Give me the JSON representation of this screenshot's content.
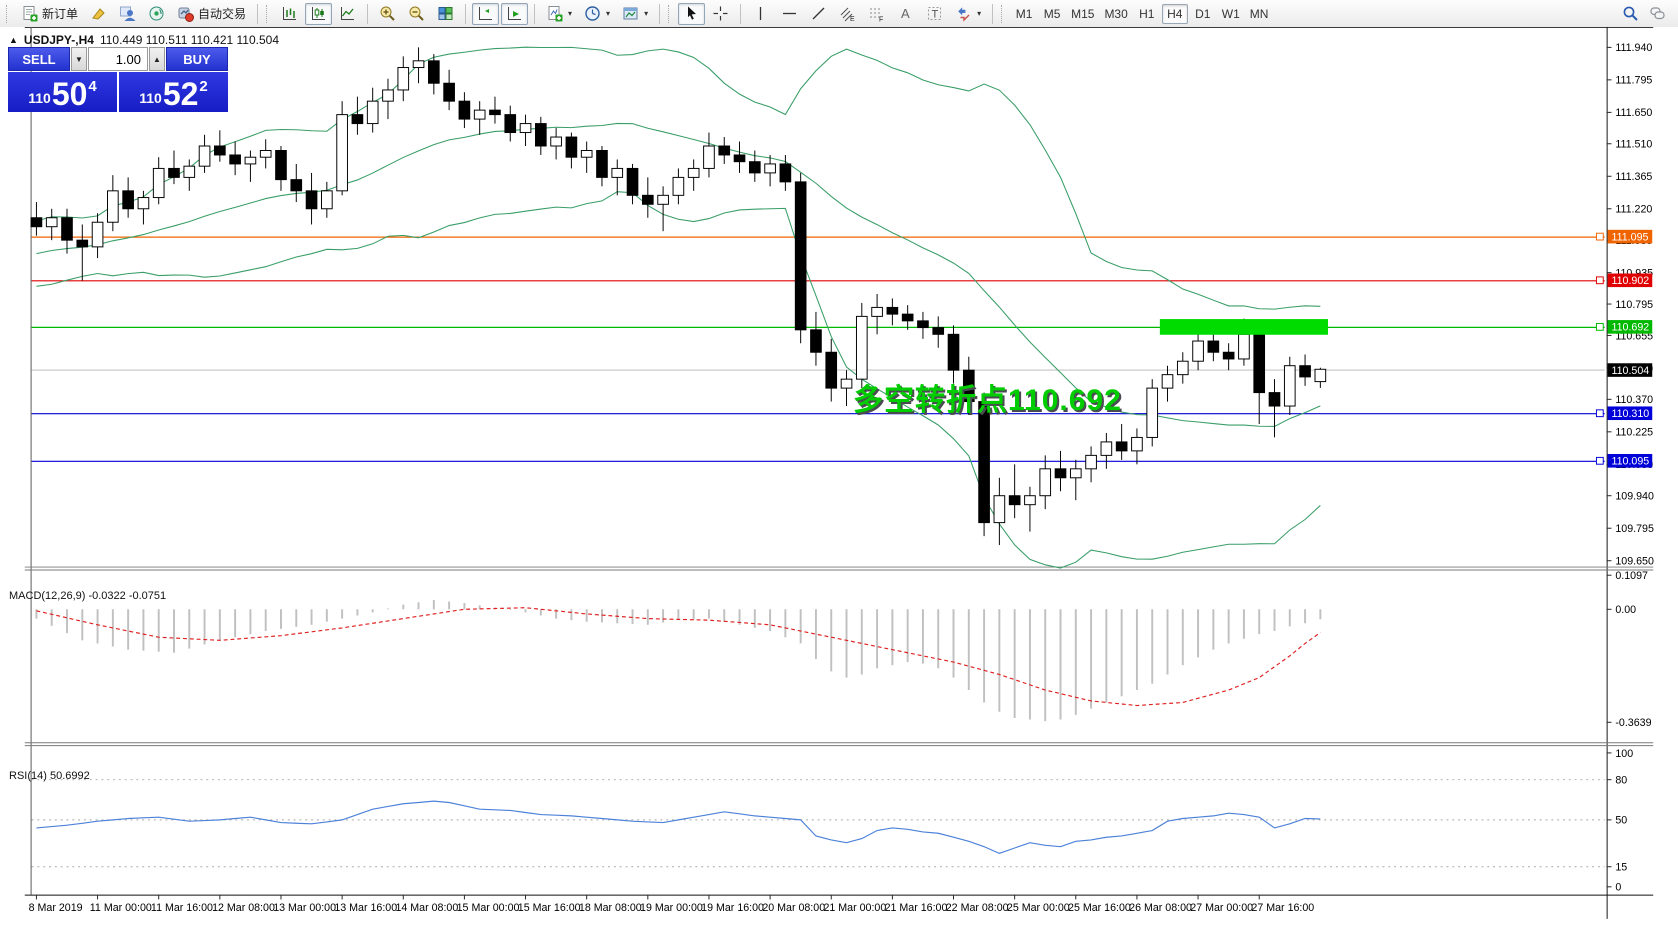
{
  "toolbar": {
    "new_order_label": "新订单",
    "auto_trading_label": "自动交易",
    "timeframes": [
      "M1",
      "M5",
      "M15",
      "M30",
      "H1",
      "H4",
      "D1",
      "W1",
      "MN"
    ],
    "active_timeframe": "H4"
  },
  "chart": {
    "title_symbol": "USDJPY-,H4",
    "title_ohlc": "110.449 110.511 110.421 110.504"
  },
  "trade_panel": {
    "sell_label": "SELL",
    "buy_label": "BUY",
    "volume": "1.00",
    "sell_prefix": "110",
    "sell_big": "50",
    "sell_sup": "4",
    "buy_prefix": "110",
    "buy_big": "52",
    "buy_sup": "2"
  },
  "annotation": {
    "text": "多空转折点110.692"
  },
  "macd_label": "MACD(12,26,9) -0.0322 -0.0751",
  "rsi_label": "RSI(14) 50.6992",
  "chart_data": {
    "type": "candlestick",
    "title": "USDJPY- H4",
    "symbol": "USDJPY-",
    "timeframe": "H4",
    "last_ohlc": {
      "open": 110.449,
      "high": 110.511,
      "low": 110.421,
      "close": 110.504
    },
    "y_ticks": [
      111.94,
      111.795,
      111.65,
      111.51,
      111.365,
      111.22,
      111.08,
      110.935,
      110.795,
      110.655,
      110.51,
      110.37,
      110.225,
      110.08,
      109.94,
      109.795,
      109.65
    ],
    "x_labels": [
      "8 Mar 2019",
      "11 Mar 00:00",
      "11 Mar 16:00",
      "12 Mar 08:00",
      "13 Mar 00:00",
      "13 Mar 16:00",
      "14 Mar 08:00",
      "15 Mar 00:00",
      "15 Mar 16:00",
      "18 Mar 08:00",
      "19 Mar 00:00",
      "19 Mar 16:00",
      "20 Mar 08:00",
      "21 Mar 00:00",
      "21 Mar 16:00",
      "22 Mar 08:00",
      "25 Mar 00:00",
      "25 Mar 16:00",
      "26 Mar 08:00",
      "27 Mar 00:00",
      "27 Mar 16:00"
    ],
    "hlines": [
      {
        "price": 111.095,
        "color": "#f06400",
        "label": "111.095"
      },
      {
        "price": 110.902,
        "color": "#e00000",
        "label": "110.902"
      },
      {
        "price": 110.692,
        "color": "#00b800",
        "label": "110.692"
      },
      {
        "price": 110.31,
        "color": "#0000d8",
        "label": "110.310"
      },
      {
        "price": 110.095,
        "color": "#0000d8",
        "label": "110.095"
      }
    ],
    "current_price": {
      "value": 110.504,
      "label": "110.504",
      "line_color": "#b4b4b4",
      "tag_bg": "#000000"
    },
    "highlight_rect": {
      "bar_start": 73.5,
      "bar_end": 84.5,
      "price_top": 110.728,
      "price_bottom": 110.658,
      "color": "#00dc00"
    },
    "bollinger": {
      "period": 20,
      "deviation": 2,
      "color": "#3a9e68"
    },
    "candle_colors": {
      "bull_fill": "#ffffff",
      "bear_fill": "#000000",
      "outline": "#000000"
    },
    "candles": [
      [
        111.18,
        111.25,
        111.1,
        111.14
      ],
      [
        111.14,
        111.22,
        111.08,
        111.18
      ],
      [
        111.18,
        111.22,
        111.02,
        111.08
      ],
      [
        111.08,
        111.15,
        110.9,
        111.05
      ],
      [
        111.05,
        111.2,
        111.0,
        111.16
      ],
      [
        111.16,
        111.37,
        111.12,
        111.3
      ],
      [
        111.3,
        111.36,
        111.18,
        111.22
      ],
      [
        111.22,
        111.3,
        111.15,
        111.27
      ],
      [
        111.27,
        111.45,
        111.24,
        111.4
      ],
      [
        111.4,
        111.48,
        111.33,
        111.36
      ],
      [
        111.36,
        111.44,
        111.3,
        111.41
      ],
      [
        111.41,
        111.55,
        111.38,
        111.5
      ],
      [
        111.5,
        111.57,
        111.43,
        111.46
      ],
      [
        111.46,
        111.52,
        111.37,
        111.42
      ],
      [
        111.42,
        111.48,
        111.34,
        111.45
      ],
      [
        111.45,
        111.53,
        111.4,
        111.48
      ],
      [
        111.48,
        111.5,
        111.3,
        111.35
      ],
      [
        111.35,
        111.42,
        111.25,
        111.3
      ],
      [
        111.3,
        111.38,
        111.15,
        111.22
      ],
      [
        111.22,
        111.34,
        111.18,
        111.3
      ],
      [
        111.3,
        111.7,
        111.28,
        111.64
      ],
      [
        111.64,
        111.72,
        111.55,
        111.6
      ],
      [
        111.6,
        111.76,
        111.56,
        111.7
      ],
      [
        111.7,
        111.8,
        111.62,
        111.75
      ],
      [
        111.75,
        111.9,
        111.7,
        111.85
      ],
      [
        111.85,
        111.94,
        111.78,
        111.88
      ],
      [
        111.88,
        111.91,
        111.73,
        111.78
      ],
      [
        111.78,
        111.84,
        111.66,
        111.7
      ],
      [
        111.7,
        111.74,
        111.58,
        111.62
      ],
      [
        111.62,
        111.7,
        111.55,
        111.66
      ],
      [
        111.66,
        111.72,
        111.6,
        111.64
      ],
      [
        111.64,
        111.68,
        111.52,
        111.56
      ],
      [
        111.56,
        111.64,
        111.5,
        111.6
      ],
      [
        111.6,
        111.63,
        111.46,
        111.5
      ],
      [
        111.5,
        111.58,
        111.44,
        111.54
      ],
      [
        111.54,
        111.56,
        111.4,
        111.45
      ],
      [
        111.45,
        111.52,
        111.38,
        111.48
      ],
      [
        111.48,
        111.5,
        111.32,
        111.36
      ],
      [
        111.36,
        111.44,
        111.28,
        111.4
      ],
      [
        111.4,
        111.42,
        111.24,
        111.28
      ],
      [
        111.28,
        111.36,
        111.18,
        111.24
      ],
      [
        111.24,
        111.32,
        111.12,
        111.28
      ],
      [
        111.28,
        111.4,
        111.24,
        111.36
      ],
      [
        111.36,
        111.44,
        111.3,
        111.4
      ],
      [
        111.4,
        111.56,
        111.36,
        111.5
      ],
      [
        111.5,
        111.54,
        111.42,
        111.46
      ],
      [
        111.46,
        111.52,
        111.38,
        111.43
      ],
      [
        111.43,
        111.48,
        111.34,
        111.38
      ],
      [
        111.38,
        111.46,
        111.32,
        111.42
      ],
      [
        111.42,
        111.46,
        111.3,
        111.34
      ],
      [
        111.34,
        111.38,
        110.62,
        110.68
      ],
      [
        110.68,
        110.76,
        110.52,
        110.58
      ],
      [
        110.58,
        110.64,
        110.36,
        110.42
      ],
      [
        110.42,
        110.5,
        110.34,
        110.46
      ],
      [
        110.46,
        110.8,
        110.42,
        110.74
      ],
      [
        110.74,
        110.84,
        110.66,
        110.78
      ],
      [
        110.78,
        110.82,
        110.7,
        110.75
      ],
      [
        110.75,
        110.79,
        110.68,
        110.72
      ],
      [
        110.72,
        110.76,
        110.64,
        110.69
      ],
      [
        110.69,
        110.74,
        110.6,
        110.66
      ],
      [
        110.66,
        110.7,
        110.44,
        110.5
      ],
      [
        110.5,
        110.56,
        110.3,
        110.36
      ],
      [
        110.36,
        110.4,
        109.76,
        109.82
      ],
      [
        109.82,
        110.02,
        109.72,
        109.94
      ],
      [
        109.94,
        110.08,
        109.84,
        109.9
      ],
      [
        109.9,
        109.98,
        109.78,
        109.94
      ],
      [
        109.94,
        110.12,
        109.88,
        110.06
      ],
      [
        110.06,
        110.14,
        109.96,
        110.02
      ],
      [
        110.02,
        110.1,
        109.92,
        110.06
      ],
      [
        110.06,
        110.16,
        110.0,
        110.12
      ],
      [
        110.12,
        110.22,
        110.06,
        110.18
      ],
      [
        110.18,
        110.26,
        110.1,
        110.14
      ],
      [
        110.14,
        110.24,
        110.08,
        110.2
      ],
      [
        110.2,
        110.46,
        110.16,
        110.42
      ],
      [
        110.42,
        110.52,
        110.36,
        110.48
      ],
      [
        110.48,
        110.58,
        110.44,
        110.54
      ],
      [
        110.54,
        110.7,
        110.5,
        110.63
      ],
      [
        110.63,
        110.66,
        110.54,
        110.58
      ],
      [
        110.58,
        110.62,
        110.5,
        110.55
      ],
      [
        110.55,
        110.73,
        110.52,
        110.66
      ],
      [
        110.66,
        110.69,
        110.26,
        110.4
      ],
      [
        110.4,
        110.46,
        110.2,
        110.34
      ],
      [
        110.34,
        110.56,
        110.3,
        110.52
      ],
      [
        110.52,
        110.57,
        110.43,
        110.47
      ],
      [
        110.449,
        110.511,
        110.421,
        110.504
      ]
    ],
    "indicators": [
      {
        "name": "MACD",
        "params": "(12,26,9)",
        "values": [
          -0.0322,
          -0.0751
        ],
        "axis_labels": [
          "0.1097",
          "0.00",
          "-0.3639"
        ],
        "histogram_color": "#c0c0c0",
        "signal_color": "#e02020",
        "main_anchors": [
          [
            0,
            -0.03
          ],
          [
            3,
            -0.1
          ],
          [
            6,
            -0.13
          ],
          [
            9,
            -0.14
          ],
          [
            12,
            -0.1
          ],
          [
            15,
            -0.07
          ],
          [
            18,
            -0.05
          ],
          [
            20,
            -0.03
          ],
          [
            22,
            -0.01
          ],
          [
            24,
            0.015
          ],
          [
            26,
            0.03
          ],
          [
            28,
            0.02
          ],
          [
            30,
            0.005
          ],
          [
            32,
            -0.01
          ],
          [
            34,
            -0.03
          ],
          [
            36,
            -0.04
          ],
          [
            38,
            -0.045
          ],
          [
            40,
            -0.05
          ],
          [
            42,
            -0.035
          ],
          [
            44,
            -0.03
          ],
          [
            46,
            -0.05
          ],
          [
            48,
            -0.07
          ],
          [
            50,
            -0.11
          ],
          [
            51,
            -0.16
          ],
          [
            52,
            -0.2
          ],
          [
            53,
            -0.22
          ],
          [
            54,
            -0.21
          ],
          [
            55,
            -0.19
          ],
          [
            56,
            -0.18
          ],
          [
            57,
            -0.17
          ],
          [
            58,
            -0.175
          ],
          [
            59,
            -0.19
          ],
          [
            60,
            -0.22
          ],
          [
            61,
            -0.26
          ],
          [
            62,
            -0.3
          ],
          [
            63,
            -0.33
          ],
          [
            64,
            -0.35
          ],
          [
            65,
            -0.355
          ],
          [
            66,
            -0.36
          ],
          [
            67,
            -0.355
          ],
          [
            68,
            -0.34
          ],
          [
            69,
            -0.32
          ],
          [
            70,
            -0.3
          ],
          [
            71,
            -0.28
          ],
          [
            72,
            -0.26
          ],
          [
            73,
            -0.24
          ],
          [
            74,
            -0.21
          ],
          [
            75,
            -0.18
          ],
          [
            76,
            -0.155
          ],
          [
            77,
            -0.13
          ],
          [
            78,
            -0.11
          ],
          [
            79,
            -0.095
          ],
          [
            80,
            -0.08
          ],
          [
            81,
            -0.07
          ],
          [
            82,
            -0.055
          ],
          [
            83,
            -0.045
          ],
          [
            84,
            -0.0322
          ]
        ],
        "signal_anchors": [
          [
            0,
            -0.005
          ],
          [
            4,
            -0.05
          ],
          [
            8,
            -0.09
          ],
          [
            12,
            -0.1
          ],
          [
            16,
            -0.085
          ],
          [
            20,
            -0.06
          ],
          [
            24,
            -0.03
          ],
          [
            28,
            0.0
          ],
          [
            32,
            0.005
          ],
          [
            36,
            -0.015
          ],
          [
            40,
            -0.03
          ],
          [
            44,
            -0.035
          ],
          [
            48,
            -0.05
          ],
          [
            52,
            -0.09
          ],
          [
            56,
            -0.13
          ],
          [
            60,
            -0.17
          ],
          [
            63,
            -0.21
          ],
          [
            66,
            -0.26
          ],
          [
            69,
            -0.295
          ],
          [
            72,
            -0.31
          ],
          [
            75,
            -0.3
          ],
          [
            78,
            -0.26
          ],
          [
            80,
            -0.22
          ],
          [
            82,
            -0.15
          ],
          [
            83,
            -0.11
          ],
          [
            84,
            -0.0751
          ]
        ]
      },
      {
        "name": "RSI",
        "params": "(14)",
        "value": 50.6992,
        "axis_labels": [
          "100",
          "80",
          "50",
          "15",
          "0"
        ],
        "levels": [
          80,
          50,
          15
        ],
        "line_color": "#4d82d9",
        "level_color": "#a8a8a8",
        "anchors": [
          [
            0,
            44
          ],
          [
            2,
            46
          ],
          [
            4,
            49
          ],
          [
            6,
            51
          ],
          [
            8,
            52
          ],
          [
            10,
            49
          ],
          [
            12,
            50
          ],
          [
            14,
            52
          ],
          [
            16,
            48
          ],
          [
            18,
            47
          ],
          [
            20,
            50
          ],
          [
            22,
            58
          ],
          [
            24,
            62
          ],
          [
            26,
            64
          ],
          [
            27,
            63
          ],
          [
            29,
            58
          ],
          [
            31,
            57
          ],
          [
            33,
            54
          ],
          [
            35,
            53
          ],
          [
            37,
            51
          ],
          [
            39,
            49
          ],
          [
            41,
            48
          ],
          [
            43,
            52
          ],
          [
            45,
            56
          ],
          [
            47,
            53
          ],
          [
            49,
            51
          ],
          [
            50,
            50
          ],
          [
            51,
            38
          ],
          [
            52,
            35
          ],
          [
            53,
            33
          ],
          [
            54,
            36
          ],
          [
            55,
            42
          ],
          [
            56,
            44
          ],
          [
            57,
            43
          ],
          [
            58,
            41
          ],
          [
            59,
            40
          ],
          [
            60,
            37
          ],
          [
            61,
            34
          ],
          [
            62,
            30
          ],
          [
            63,
            25
          ],
          [
            64,
            29
          ],
          [
            65,
            33
          ],
          [
            66,
            31
          ],
          [
            67,
            30
          ],
          [
            68,
            34
          ],
          [
            69,
            35
          ],
          [
            70,
            37
          ],
          [
            71,
            38
          ],
          [
            72,
            40
          ],
          [
            73,
            42
          ],
          [
            74,
            49
          ],
          [
            75,
            51
          ],
          [
            76,
            52
          ],
          [
            77,
            53
          ],
          [
            78,
            55
          ],
          [
            79,
            54
          ],
          [
            80,
            52
          ],
          [
            81,
            44
          ],
          [
            82,
            47
          ],
          [
            83,
            51
          ],
          [
            84,
            50.6992
          ]
        ]
      }
    ]
  }
}
